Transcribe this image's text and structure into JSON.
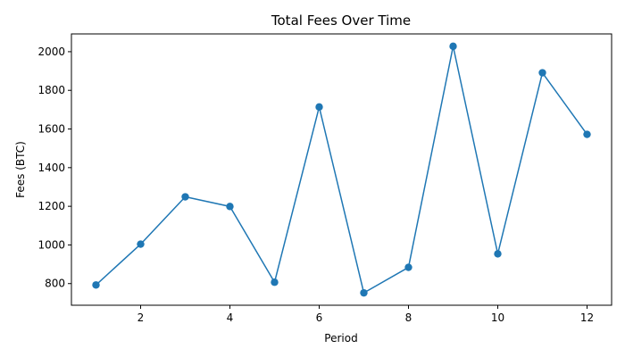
{
  "chart_data": {
    "type": "line",
    "title": "Total Fees Over Time",
    "xlabel": "Period",
    "ylabel": "Fees (BTC)",
    "x": [
      1,
      2,
      3,
      4,
      5,
      6,
      7,
      8,
      9,
      10,
      11,
      12
    ],
    "series": [
      {
        "values": [
          793,
          1004,
          1249,
          1199,
          807,
          1714,
          752,
          884,
          2028,
          954,
          1891,
          1572
        ]
      }
    ],
    "xlim": [
      0.45,
      12.55
    ],
    "ylim": [
      688,
      2092
    ],
    "xticks": [
      2,
      4,
      6,
      8,
      10,
      12
    ],
    "yticks": [
      800,
      1000,
      1200,
      1400,
      1600,
      1800,
      2000
    ],
    "marker": "circle",
    "grid": false,
    "legend": false,
    "colors": {
      "line": "#1f77b4",
      "axes": "#000000"
    }
  }
}
